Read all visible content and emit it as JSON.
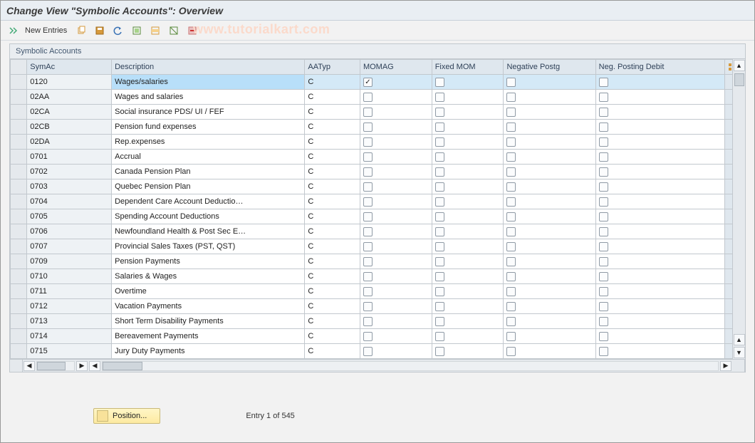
{
  "title": "Change View \"Symbolic Accounts\": Overview",
  "watermark": "www.tutorialkart.com",
  "toolbar": {
    "new_entries": "New Entries"
  },
  "panel": {
    "title": "Symbolic Accounts"
  },
  "columns": {
    "symac": "SymAc",
    "desc": "Description",
    "aatyp": "AATyp",
    "momag": "MOMAG",
    "fixed_mom": "Fixed MOM",
    "neg_postg": "Negative Postg",
    "neg_debit": "Neg. Posting Debit"
  },
  "rows": [
    {
      "sym": "0120",
      "desc": "Wages/salaries",
      "aatyp": "C",
      "momag": true,
      "fixed": false,
      "negp": false,
      "negd": false,
      "sel": true
    },
    {
      "sym": "02AA",
      "desc": "Wages and salaries",
      "aatyp": "C",
      "momag": false,
      "fixed": false,
      "negp": false,
      "negd": false
    },
    {
      "sym": "02CA",
      "desc": "Social insurance PDS/ UI / FEF",
      "aatyp": "C",
      "momag": false,
      "fixed": false,
      "negp": false,
      "negd": false
    },
    {
      "sym": "02CB",
      "desc": "Pension fund expenses",
      "aatyp": "C",
      "momag": false,
      "fixed": false,
      "negp": false,
      "negd": false
    },
    {
      "sym": "02DA",
      "desc": "Rep.expenses",
      "aatyp": "C",
      "momag": false,
      "fixed": false,
      "negp": false,
      "negd": false
    },
    {
      "sym": "0701",
      "desc": "Accrual",
      "aatyp": "C",
      "momag": false,
      "fixed": false,
      "negp": false,
      "negd": false
    },
    {
      "sym": "0702",
      "desc": "Canada Pension Plan",
      "aatyp": "C",
      "momag": false,
      "fixed": false,
      "negp": false,
      "negd": false
    },
    {
      "sym": "0703",
      "desc": "Quebec Pension Plan",
      "aatyp": "C",
      "momag": false,
      "fixed": false,
      "negp": false,
      "negd": false
    },
    {
      "sym": "0704",
      "desc": "Dependent Care Account Deductio…",
      "aatyp": "C",
      "momag": false,
      "fixed": false,
      "negp": false,
      "negd": false
    },
    {
      "sym": "0705",
      "desc": "Spending Account Deductions",
      "aatyp": "C",
      "momag": false,
      "fixed": false,
      "negp": false,
      "negd": false
    },
    {
      "sym": "0706",
      "desc": "Newfoundland Health & Post Sec E…",
      "aatyp": "C",
      "momag": false,
      "fixed": false,
      "negp": false,
      "negd": false
    },
    {
      "sym": "0707",
      "desc": "Provincial Sales Taxes (PST, QST)",
      "aatyp": "C",
      "momag": false,
      "fixed": false,
      "negp": false,
      "negd": false
    },
    {
      "sym": "0709",
      "desc": "Pension Payments",
      "aatyp": "C",
      "momag": false,
      "fixed": false,
      "negp": false,
      "negd": false
    },
    {
      "sym": "0710",
      "desc": "Salaries & Wages",
      "aatyp": "C",
      "momag": false,
      "fixed": false,
      "negp": false,
      "negd": false
    },
    {
      "sym": "0711",
      "desc": "Overtime",
      "aatyp": "C",
      "momag": false,
      "fixed": false,
      "negp": false,
      "negd": false
    },
    {
      "sym": "0712",
      "desc": "Vacation Payments",
      "aatyp": "C",
      "momag": false,
      "fixed": false,
      "negp": false,
      "negd": false
    },
    {
      "sym": "0713",
      "desc": "Short Term Disability Payments",
      "aatyp": "C",
      "momag": false,
      "fixed": false,
      "negp": false,
      "negd": false
    },
    {
      "sym": "0714",
      "desc": "Bereavement Payments",
      "aatyp": "C",
      "momag": false,
      "fixed": false,
      "negp": false,
      "negd": false
    },
    {
      "sym": "0715",
      "desc": "Jury Duty Payments",
      "aatyp": "C",
      "momag": false,
      "fixed": false,
      "negp": false,
      "negd": false
    }
  ],
  "footer": {
    "position_btn": "Position...",
    "entry_text": "Entry 1 of 545"
  },
  "colors": {
    "accent_bg": "#e9eef3",
    "border": "#c2c8ce",
    "header_bg": "#dfe7ee",
    "sel_row": "#d4e9f7",
    "sel_cell": "#b8dff9"
  }
}
